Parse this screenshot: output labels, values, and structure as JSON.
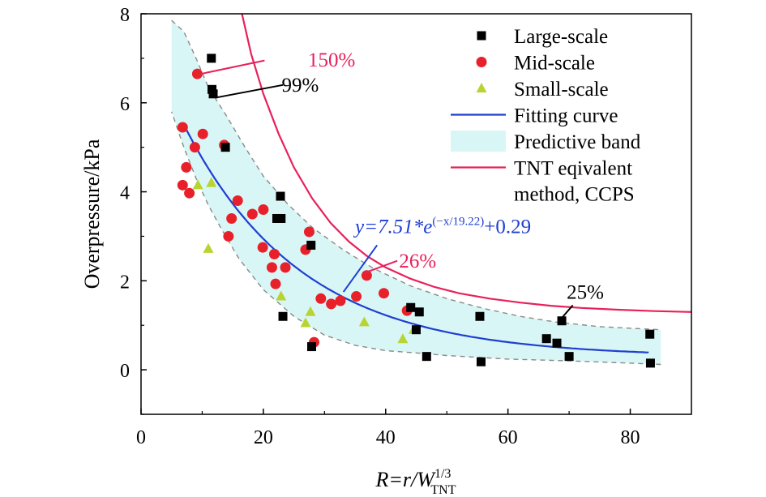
{
  "chart_data": {
    "type": "scatter",
    "xlim": [
      0,
      90
    ],
    "ylim": [
      -1,
      8
    ],
    "x_ticks": [
      0,
      20,
      40,
      60,
      80
    ],
    "y_ticks": [
      0,
      2,
      4,
      6,
      8
    ],
    "ylabel": "Overpressure/kPa",
    "xlabel": {
      "main": "R=r/W",
      "superscript": "1/3",
      "subscript": "TNT"
    },
    "grid": false,
    "legend_position": "top-right",
    "series": [
      {
        "name": "Large-scale",
        "marker": "square",
        "color": "#000000",
        "points": [
          [
            11.5,
            7.0
          ],
          [
            11.6,
            6.3
          ],
          [
            11.8,
            6.2
          ],
          [
            13.8,
            5.0
          ],
          [
            22.8,
            3.9
          ],
          [
            22.2,
            3.4
          ],
          [
            22.9,
            3.4
          ],
          [
            27.8,
            2.8
          ],
          [
            23.2,
            1.2
          ],
          [
            27.9,
            0.52
          ],
          [
            44.1,
            1.4
          ],
          [
            45.5,
            1.3
          ],
          [
            45.0,
            0.9
          ],
          [
            46.7,
            0.3
          ],
          [
            55.4,
            1.2
          ],
          [
            55.6,
            0.18
          ],
          [
            66.3,
            0.7
          ],
          [
            68.0,
            0.6
          ],
          [
            68.8,
            1.1
          ],
          [
            70.0,
            0.3
          ],
          [
            83.2,
            0.8
          ],
          [
            83.3,
            0.15
          ]
        ]
      },
      {
        "name": "Mid-scale",
        "marker": "circle",
        "color": "#e8202a",
        "points": [
          [
            9.2,
            6.65
          ],
          [
            6.8,
            5.45
          ],
          [
            10.1,
            5.3
          ],
          [
            8.8,
            5.0
          ],
          [
            13.6,
            5.05
          ],
          [
            7.4,
            4.55
          ],
          [
            6.8,
            4.15
          ],
          [
            7.9,
            3.97
          ],
          [
            15.8,
            3.8
          ],
          [
            14.8,
            3.4
          ],
          [
            14.3,
            3.0
          ],
          [
            18.2,
            3.5
          ],
          [
            20.0,
            3.6
          ],
          [
            19.9,
            2.75
          ],
          [
            21.4,
            2.3
          ],
          [
            21.8,
            2.6
          ],
          [
            23.6,
            2.3
          ],
          [
            22.0,
            1.93
          ],
          [
            27.5,
            3.1
          ],
          [
            26.9,
            2.7
          ],
          [
            29.4,
            1.6
          ],
          [
            31.1,
            1.48
          ],
          [
            32.6,
            1.55
          ],
          [
            35.2,
            1.65
          ],
          [
            36.9,
            2.12
          ],
          [
            39.7,
            1.72
          ],
          [
            43.5,
            1.33
          ],
          [
            28.3,
            0.62
          ]
        ]
      },
      {
        "name": "Small-scale",
        "marker": "triangle",
        "color": "#b8d432",
        "points": [
          [
            9.3,
            4.15
          ],
          [
            11.5,
            4.2
          ],
          [
            11.0,
            2.72
          ],
          [
            22.9,
            1.65
          ],
          [
            27.7,
            1.3
          ],
          [
            26.9,
            1.05
          ],
          [
            36.5,
            1.07
          ],
          [
            42.8,
            0.69
          ],
          [
            44.6,
            0.9
          ]
        ]
      }
    ],
    "fitting_curve": {
      "name": "Fitting curve",
      "color": "#1f3fd1",
      "equation": {
        "a": 7.51,
        "t": 19.22,
        "c": 0.29
      },
      "x_range": [
        7,
        83
      ],
      "label": {
        "lhs": "y=7.51*e",
        "exponent": "(−x/19.22)",
        "rhs": "+0.29"
      }
    },
    "predictive_band": {
      "name": "Predictive band",
      "fill": "#d9f6f6",
      "upper": [
        [
          5,
          7.85
        ],
        [
          7,
          7.6
        ],
        [
          9,
          7.0
        ],
        [
          11,
          6.35
        ],
        [
          14,
          5.7
        ],
        [
          17,
          5.0
        ],
        [
          20,
          4.35
        ],
        [
          24,
          3.72
        ],
        [
          28,
          3.2
        ],
        [
          33,
          2.7
        ],
        [
          38,
          2.28
        ],
        [
          44,
          1.89
        ],
        [
          50,
          1.6
        ],
        [
          56,
          1.38
        ],
        [
          62,
          1.2
        ],
        [
          68,
          1.07
        ],
        [
          75,
          0.97
        ],
        [
          85,
          0.9
        ]
      ],
      "lower": [
        [
          85,
          0.12
        ],
        [
          80,
          0.15
        ],
        [
          70,
          0.2
        ],
        [
          60,
          0.24
        ],
        [
          50,
          0.32
        ],
        [
          45,
          0.38
        ],
        [
          40,
          0.43
        ],
        [
          35,
          0.55
        ],
        [
          30,
          0.78
        ],
        [
          25,
          1.2
        ],
        [
          20,
          1.8
        ],
        [
          16,
          2.5
        ],
        [
          13,
          3.2
        ],
        [
          11,
          3.7
        ],
        [
          9,
          4.3
        ],
        [
          7,
          5.0
        ],
        [
          5,
          5.8
        ]
      ]
    },
    "tnt_curve": {
      "name_lines": [
        "TNT eqivalent",
        "method, CCPS"
      ],
      "color": "#e8205a",
      "points": [
        [
          16.5,
          8.0
        ],
        [
          18,
          7.1
        ],
        [
          20,
          6.2
        ],
        [
          22.5,
          5.3
        ],
        [
          25,
          4.55
        ],
        [
          28,
          3.85
        ],
        [
          31,
          3.3
        ],
        [
          34,
          2.88
        ],
        [
          37,
          2.55
        ],
        [
          40,
          2.3
        ],
        [
          44,
          2.05
        ],
        [
          48,
          1.86
        ],
        [
          52,
          1.72
        ],
        [
          57,
          1.6
        ],
        [
          62,
          1.51
        ],
        [
          67,
          1.44
        ],
        [
          72,
          1.39
        ],
        [
          78,
          1.35
        ],
        [
          84,
          1.32
        ],
        [
          90,
          1.3
        ]
      ]
    },
    "annotations": [
      {
        "text": "150%",
        "color": "#e8205a",
        "text_at": [
          27.3,
          6.82
        ],
        "line": [
          [
            9.8,
            6.65
          ],
          [
            20.2,
            6.95
          ]
        ],
        "line_color": "#e8205a"
      },
      {
        "text": "99%",
        "color": "#000000",
        "text_at": [
          23.0,
          6.25
        ],
        "line": [
          [
            12.4,
            6.12
          ],
          [
            23.2,
            6.4
          ]
        ],
        "line_color": "#000000"
      },
      {
        "text": "26%",
        "color": "#e8205a",
        "text_at": [
          42.2,
          2.3
        ],
        "line": [
          [
            36.6,
            2.18
          ],
          [
            41.9,
            2.45
          ]
        ],
        "line_color": "#e8205a"
      },
      {
        "text": "25%",
        "color": "#000000",
        "text_at": [
          69.6,
          1.6
        ],
        "line": [
          [
            68.7,
            1.15
          ],
          [
            70.6,
            1.45
          ]
        ],
        "line_color": "#000000"
      }
    ],
    "equation_label_at": [
      35.0,
      3.07
    ],
    "equation_pointer": [
      [
        33.1,
        1.75
      ],
      [
        38.6,
        2.8
      ]
    ]
  }
}
